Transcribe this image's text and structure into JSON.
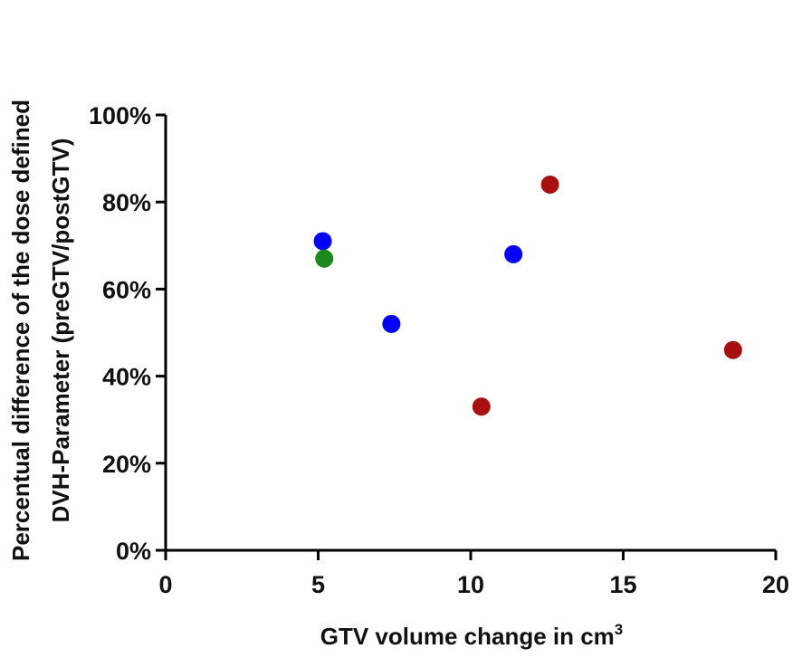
{
  "chart_data": {
    "type": "scatter",
    "xlabel": "GTV volume change in cm",
    "xlabel_superscript": "3",
    "ylabel_line1": "Percentual difference of the dose defined",
    "ylabel_line2": "DVH-Parameter (preGTV/postGTV)",
    "xlim": [
      0,
      20
    ],
    "ylim": [
      0,
      100
    ],
    "x_ticks": [
      0,
      5,
      10,
      15,
      20
    ],
    "y_ticks": [
      0,
      20,
      40,
      60,
      80,
      100
    ],
    "y_tick_suffix": "%",
    "grid": false,
    "legend": "none",
    "series": [
      {
        "color": "#0000ff",
        "points": [
          {
            "x": 5.15,
            "y": 71
          },
          {
            "x": 7.4,
            "y": 52
          },
          {
            "x": 11.4,
            "y": 68
          }
        ]
      },
      {
        "color": "#1a8a1a",
        "points": [
          {
            "x": 5.2,
            "y": 67
          }
        ]
      },
      {
        "color": "#a80f0f",
        "points": [
          {
            "x": 10.35,
            "y": 33
          },
          {
            "x": 12.6,
            "y": 84
          },
          {
            "x": 18.6,
            "y": 46
          }
        ]
      }
    ]
  }
}
